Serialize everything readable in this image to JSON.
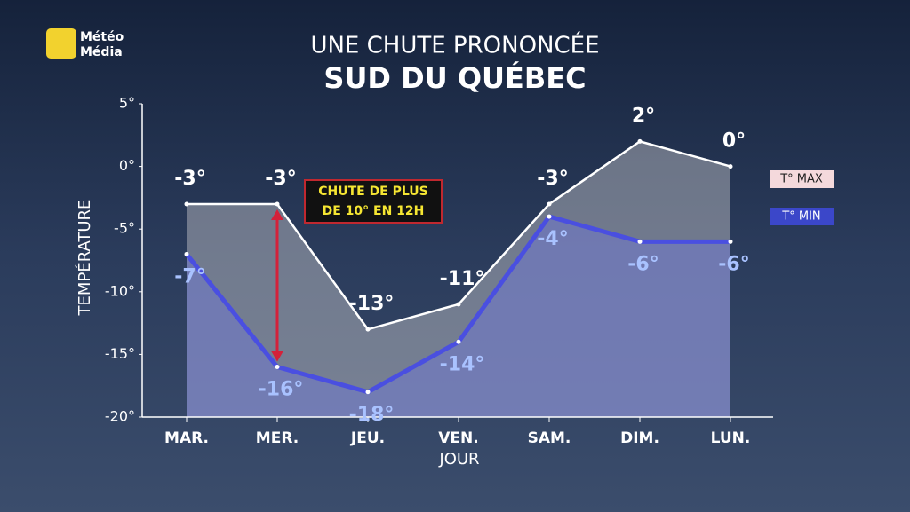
{
  "logo": [
    "Météo",
    "Média"
  ],
  "chart_data": {
    "type": "line",
    "title": "UNE CHUTE PRONONCÉE",
    "subtitle": "SUD DU QUÉBEC",
    "y_label": "TEMPÉRATURE",
    "x_label": "JOUR",
    "annotation": [
      "CHUTE DE PLUS",
      "DE 10° EN 12H"
    ],
    "categories": [
      "MAR.",
      "MER.",
      "JEU.",
      "VEN.",
      "SAM.",
      "DIM.",
      "LUN."
    ],
    "series": [
      {
        "name": "T° MAX",
        "color": "#ffffff",
        "values": [
          -3,
          -3,
          -13,
          -11,
          -3,
          2,
          0
        ],
        "value_labels": [
          "-3°",
          "-3°",
          "-13°",
          "-11°",
          "-3°",
          "2°",
          "0°"
        ]
      },
      {
        "name": "T° MIN",
        "color": "#4a4fe0",
        "values": [
          -7,
          -16,
          -18,
          -14,
          -4,
          -6,
          -6
        ],
        "value_labels": [
          "-7°",
          "-16°",
          "-18°",
          "-14°",
          "-4°",
          "-6°",
          "-6°"
        ]
      }
    ],
    "ylim": [
      -20,
      5
    ],
    "yticks": [
      {
        "value": 5,
        "label": "5°"
      },
      {
        "value": 0,
        "label": "0°"
      },
      {
        "value": -5,
        "label": "-5°"
      },
      {
        "value": -10,
        "label": "-10°"
      },
      {
        "value": -15,
        "label": "-15°"
      },
      {
        "value": -20,
        "label": "-20°"
      }
    ],
    "grid": false
  }
}
